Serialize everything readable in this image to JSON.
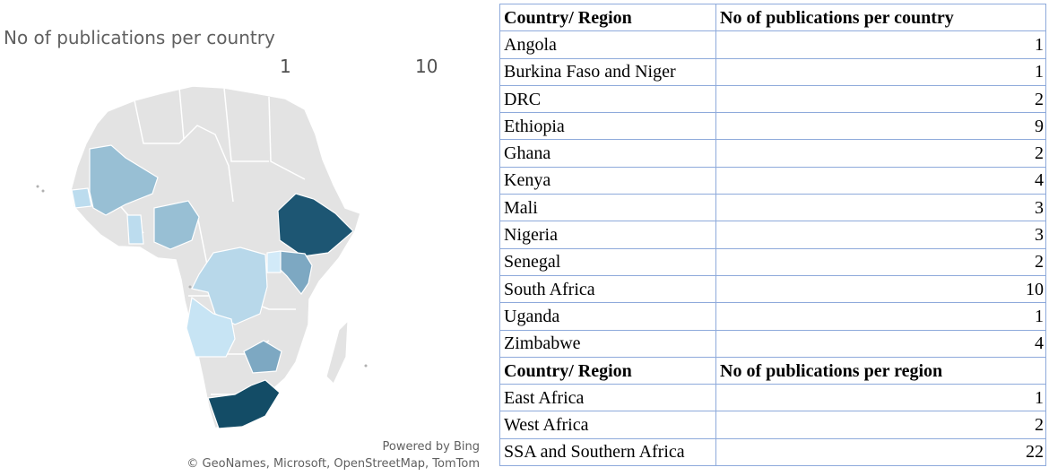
{
  "map": {
    "title": "No of publications per country",
    "legend": {
      "min_label": "1",
      "max_label": "10",
      "low_color": "#cfe8f6",
      "high_color": "#134c66"
    },
    "base_color": "#e3e3e3",
    "border_color": "#ffffff",
    "attribution_powered": "Powered by Bing",
    "attribution_credits": "© GeoNames, Microsoft, OpenStreetMap, TomTom",
    "highlighted": [
      {
        "name": "Angola",
        "value": 1,
        "color": "#c7e4f4"
      },
      {
        "name": "Burkina Faso and Niger",
        "value": 1
      },
      {
        "name": "DRC",
        "value": 2,
        "color": "#b8d8ea"
      },
      {
        "name": "Ethiopia",
        "value": 9,
        "color": "#1d5673"
      },
      {
        "name": "Ghana",
        "value": 2,
        "color": "#bcdcee"
      },
      {
        "name": "Kenya",
        "value": 4,
        "color": "#7da8c2"
      },
      {
        "name": "Mali",
        "value": 3,
        "color": "#98bfd4"
      },
      {
        "name": "Nigeria",
        "value": 3,
        "color": "#98bfd4"
      },
      {
        "name": "Senegal",
        "value": 2,
        "color": "#bcdcee"
      },
      {
        "name": "South Africa",
        "value": 10,
        "color": "#134c66"
      },
      {
        "name": "Uganda",
        "value": 1,
        "color": "#d2eaf8"
      },
      {
        "name": "Zimbabwe",
        "value": 4,
        "color": "#7da8c2"
      }
    ]
  },
  "table": {
    "country_header": {
      "col1": "Country/ Region",
      "col2": "No of publications per country"
    },
    "countries": [
      {
        "name": "Angola",
        "count": "1"
      },
      {
        "name": "Burkina Faso and Niger",
        "count": "1"
      },
      {
        "name": "DRC",
        "count": "2"
      },
      {
        "name": "Ethiopia",
        "count": "9"
      },
      {
        "name": "Ghana",
        "count": "2"
      },
      {
        "name": "Kenya",
        "count": "4"
      },
      {
        "name": "Mali",
        "count": "3"
      },
      {
        "name": "Nigeria",
        "count": "3"
      },
      {
        "name": "Senegal",
        "count": "2"
      },
      {
        "name": "South Africa",
        "count": "10"
      },
      {
        "name": "Uganda",
        "count": "1"
      },
      {
        "name": "Zimbabwe",
        "count": "4"
      }
    ],
    "region_header": {
      "col1": "Country/ Region",
      "col2": "No of publications per region"
    },
    "regions": [
      {
        "name": "East Africa",
        "count": "1"
      },
      {
        "name": "West Africa",
        "count": "2"
      },
      {
        "name": "SSA and Southern Africa",
        "count": "22"
      }
    ]
  }
}
